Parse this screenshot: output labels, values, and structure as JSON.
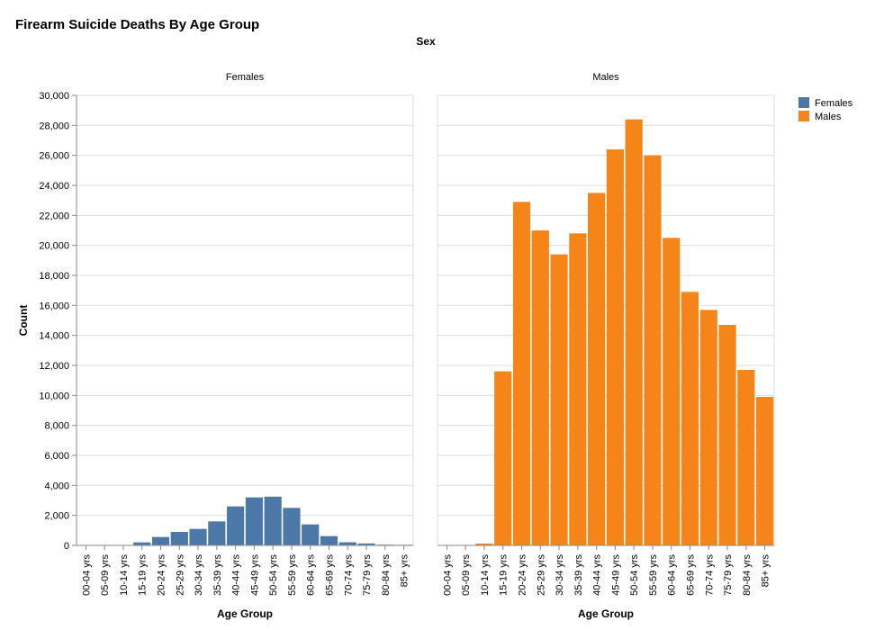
{
  "colors": {
    "females": "#4c78a8",
    "males": "#f58518"
  },
  "chart_data": {
    "type": "bar",
    "title": "Firearm Suicide Deaths By Age Group",
    "facet_title": "Sex",
    "xlabel": "Age Group",
    "ylabel": "Count",
    "ylim": [
      0,
      30000
    ],
    "yticks": [
      0,
      2000,
      4000,
      6000,
      8000,
      10000,
      12000,
      14000,
      16000,
      18000,
      20000,
      22000,
      24000,
      26000,
      28000,
      30000
    ],
    "ytick_labels": [
      "0",
      "2,000",
      "4,000",
      "6,000",
      "8,000",
      "10,000",
      "12,000",
      "14,000",
      "16,000",
      "18,000",
      "20,000",
      "22,000",
      "24,000",
      "26,000",
      "28,000",
      "30,000"
    ],
    "grid": true,
    "categories": [
      "00-04 yrs",
      "05-09 yrs",
      "10-14 yrs",
      "15-19 yrs",
      "20-24 yrs",
      "25-29 yrs",
      "30-34 yrs",
      "35-39 yrs",
      "40-44 yrs",
      "45-49 yrs",
      "50-54 yrs",
      "55-59 yrs",
      "60-64 yrs",
      "65-69 yrs",
      "70-74 yrs",
      "75-79 yrs",
      "80-84 yrs",
      "85+ yrs"
    ],
    "legend_placement": "top-right",
    "series": [
      {
        "name": "Females",
        "values": [
          0,
          0,
          20,
          200,
          560,
          900,
          1100,
          1600,
          2600,
          3200,
          3250,
          2500,
          1400,
          620,
          210,
          130,
          50,
          40
        ]
      },
      {
        "name": "Males",
        "values": [
          0,
          0,
          120,
          11600,
          22900,
          21000,
          19400,
          20800,
          23500,
          26400,
          28400,
          26000,
          20500,
          16900,
          15700,
          14700,
          11700,
          9900
        ]
      }
    ]
  }
}
